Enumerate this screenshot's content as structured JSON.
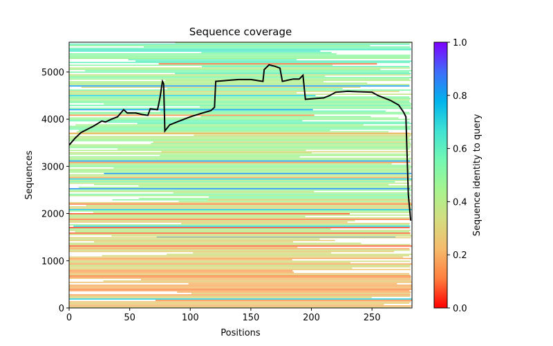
{
  "chart_data": {
    "type": "heatmap",
    "title": "Sequence coverage",
    "xlabel": "Positions",
    "ylabel": "Sequences",
    "xlim": [
      0,
      283
    ],
    "ylim": [
      0,
      5630
    ],
    "xticks": [
      0,
      50,
      100,
      150,
      200,
      250
    ],
    "yticks": [
      0,
      1000,
      2000,
      3000,
      4000,
      5000
    ],
    "grid": false,
    "colorbar": {
      "label": "Sequence identity to query",
      "colormap": "rainbow_r",
      "range": [
        0.0,
        1.0
      ],
      "ticks": [
        "0.0",
        "0.2",
        "0.4",
        "0.6",
        "0.8",
        "1.0"
      ],
      "stops": [
        "#ff0000",
        "#ff7f3f",
        "#f5bb6c",
        "#d4dd80",
        "#a6f48f",
        "#74f8b2",
        "#3fe2d3",
        "#00b4ec",
        "#3f6cfa",
        "#7f00ff"
      ]
    },
    "identity_bands": [
      {
        "from": 5300,
        "to": 5630,
        "identity": 0.55
      },
      {
        "from": 4950,
        "to": 5300,
        "identity": 0.5
      },
      {
        "from": 4300,
        "to": 4950,
        "identity": 0.42
      },
      {
        "from": 3700,
        "to": 4300,
        "identity": 0.48
      },
      {
        "from": 3300,
        "to": 3700,
        "identity": 0.4
      },
      {
        "from": 2300,
        "to": 3300,
        "identity": 0.45
      },
      {
        "from": 1500,
        "to": 2300,
        "identity": 0.37
      },
      {
        "from": 700,
        "to": 1500,
        "identity": 0.27
      },
      {
        "from": 0,
        "to": 700,
        "identity": 0.22
      }
    ],
    "series": [
      {
        "name": "coverage",
        "color": "#000000",
        "x": [
          0,
          5,
          10,
          20,
          27,
          30,
          35,
          40,
          45,
          48,
          55,
          60,
          65,
          67,
          73,
          75,
          77,
          78,
          79,
          83,
          90,
          100,
          110,
          117,
          120,
          121,
          130,
          140,
          150,
          160,
          161,
          165,
          170,
          174,
          176,
          185,
          190,
          193,
          195,
          200,
          210,
          215,
          220,
          230,
          250,
          255,
          265,
          272,
          276,
          278,
          280,
          282
        ],
        "y": [
          3450,
          3600,
          3720,
          3850,
          3960,
          3940,
          4000,
          4050,
          4200,
          4130,
          4130,
          4100,
          4080,
          4220,
          4200,
          4450,
          4800,
          4750,
          3750,
          3880,
          3950,
          4050,
          4130,
          4180,
          4250,
          4800,
          4820,
          4840,
          4840,
          4800,
          5050,
          5150,
          5120,
          5080,
          4800,
          4850,
          4850,
          4930,
          4420,
          4430,
          4450,
          4500,
          4570,
          4590,
          4570,
          4500,
          4400,
          4300,
          4150,
          4050,
          2400,
          1850
        ]
      }
    ]
  }
}
